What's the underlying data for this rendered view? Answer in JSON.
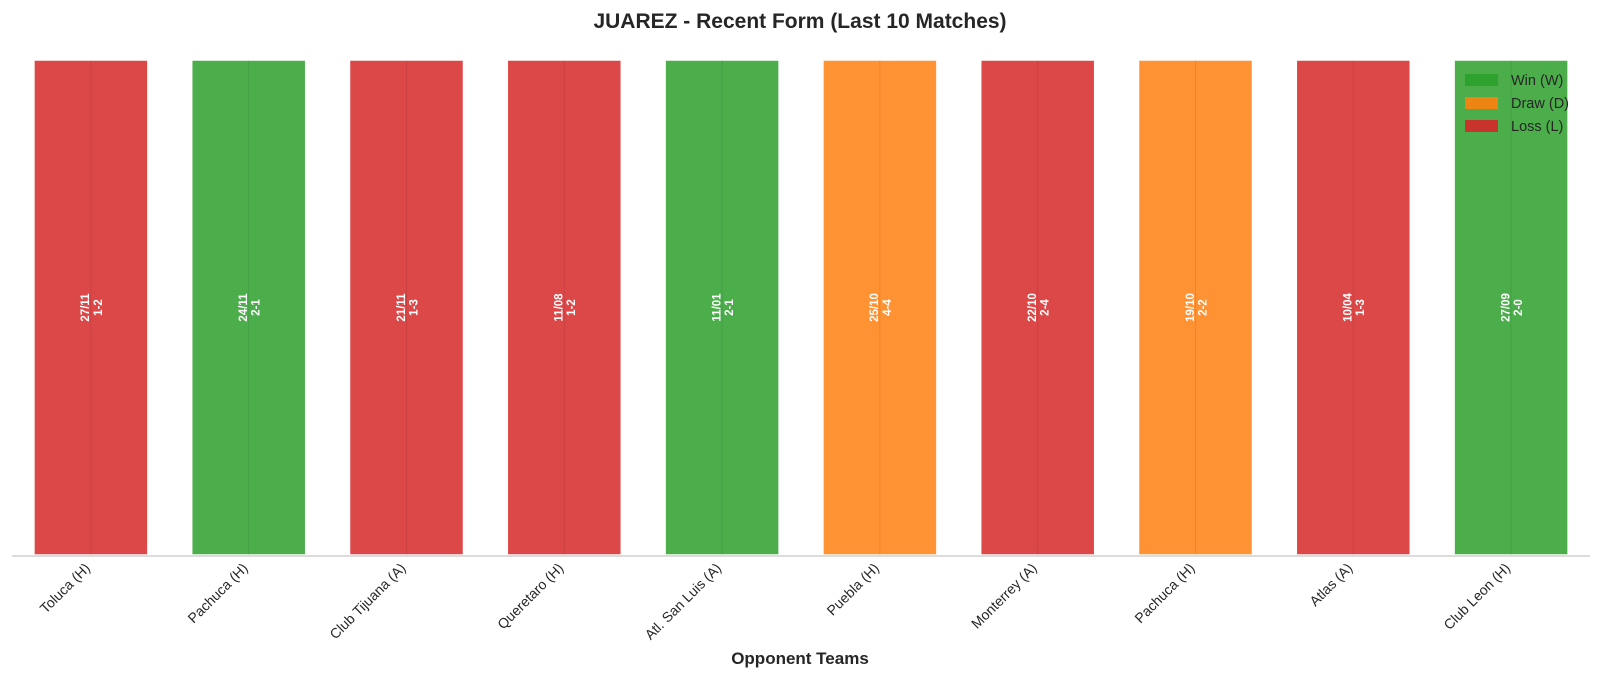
{
  "chart_data": {
    "type": "bar",
    "title": "JUAREZ - Recent Form (Last 10 Matches)",
    "xlabel": "Opponent Teams",
    "ylabel": "",
    "ylim": [
      0,
      1
    ],
    "grid": false,
    "legend_position": "top-right",
    "categories": [
      "Toluca (H)",
      "Pachuca (H)",
      "Club Tijuana (A)",
      "Queretaro (H)",
      "Atl. San Luis (A)",
      "Puebla (H)",
      "Monterrey (A)",
      "Pachuca (H)",
      "Atlas (A)",
      "Club Leon (H)"
    ],
    "values": [
      1,
      1,
      1,
      1,
      1,
      1,
      1,
      1,
      1,
      1
    ],
    "results": [
      "L",
      "W",
      "L",
      "L",
      "W",
      "D",
      "L",
      "D",
      "L",
      "W"
    ],
    "dates": [
      "27/11",
      "24/11",
      "21/11",
      "11/08",
      "11/01",
      "25/10",
      "22/10",
      "19/10",
      "10/04",
      "27/09"
    ],
    "scores": [
      "1-2",
      "2-1",
      "1-3",
      "1-2",
      "2-1",
      "4-4",
      "2-4",
      "2-2",
      "1-3",
      "2-0"
    ],
    "legend": [
      {
        "key": "W",
        "label": "Win (W)",
        "color": "#2ca02c"
      },
      {
        "key": "D",
        "label": "Draw (D)",
        "color": "#ff7f0e"
      },
      {
        "key": "L",
        "label": "Loss (L)",
        "color": "#d62728"
      }
    ],
    "colors": {
      "W": "#2ca02c",
      "D": "#ff7f0e",
      "L": "#d62728"
    }
  }
}
